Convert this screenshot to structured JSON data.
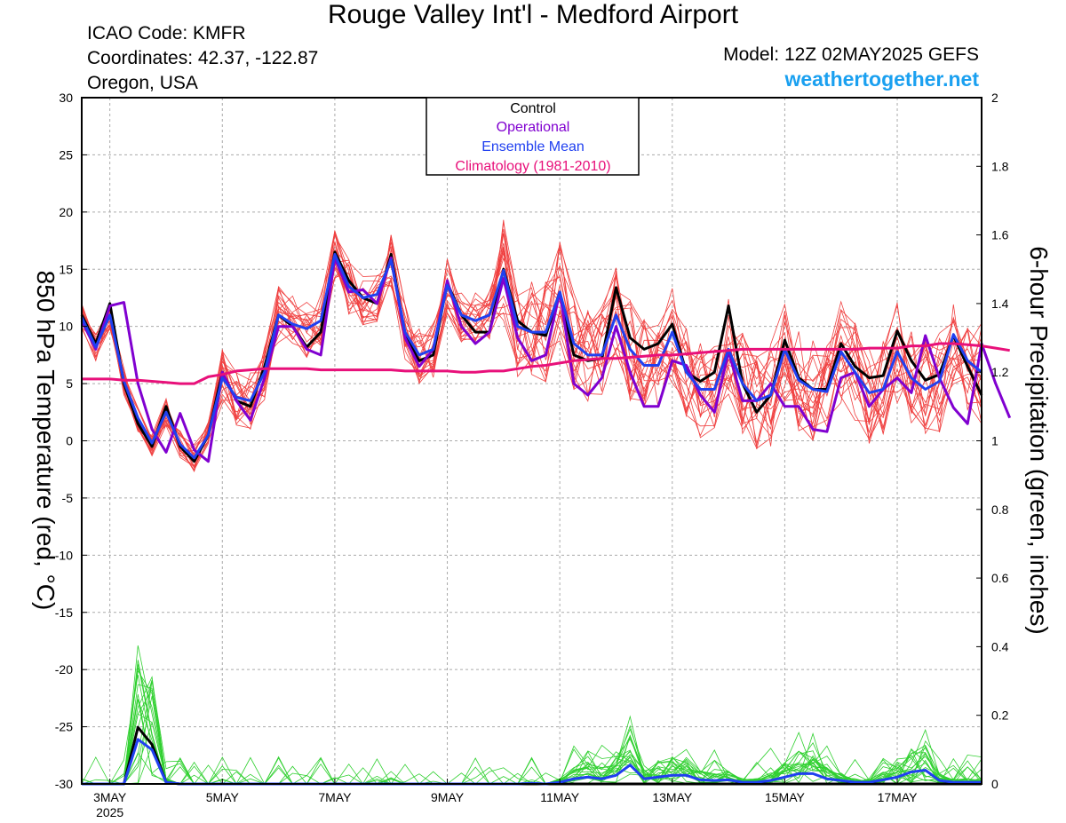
{
  "header": {
    "title": "Rouge Valley Int'l - Medford Airport",
    "icao": "ICAO Code: KMFR",
    "coords": "Coordinates: 42.37, -122.87",
    "region": "Oregon, USA",
    "model": "Model: 12Z 02MAY2025 GEFS",
    "site": "weathertogether.net"
  },
  "colors": {
    "control": "#000000",
    "operational": "#8000d0",
    "ensemble_mean": "#2040f0",
    "climatology": "#e8107a",
    "temp_members": "#f04040",
    "precip_members": "#30d030",
    "site": "#1aa0f0"
  },
  "chart_data": {
    "type": "line",
    "ylabel": "850 hPa Temperature (red, °C)",
    "y2label": "6-hour Precipitation (green, inches)",
    "ylim": [
      -30,
      30
    ],
    "y2lim": [
      0,
      2
    ],
    "yticks": [
      "30",
      "25",
      "20",
      "15",
      "10",
      "5",
      "0",
      "-5",
      "-10",
      "-15",
      "-20",
      "-25",
      "-30"
    ],
    "y2ticks": [
      "2",
      "1.8",
      "1.6",
      "1.4",
      "1.2",
      "1",
      "0.8",
      "0.6",
      "0.4",
      "0.2",
      "0"
    ],
    "xlim": [
      0,
      64
    ],
    "xticks": [
      {
        "x": 2,
        "label": "3MAY",
        "sub": "2025"
      },
      {
        "x": 10,
        "label": "5MAY",
        "sub": ""
      },
      {
        "x": 18,
        "label": "7MAY",
        "sub": ""
      },
      {
        "x": 26,
        "label": "9MAY",
        "sub": ""
      },
      {
        "x": 34,
        "label": "11MAY",
        "sub": ""
      },
      {
        "x": 42,
        "label": "13MAY",
        "sub": ""
      },
      {
        "x": 50,
        "label": "15MAY",
        "sub": ""
      },
      {
        "x": 58,
        "label": "17MAY",
        "sub": ""
      }
    ],
    "grid": true,
    "legend": {
      "position": "top-center",
      "entries": [
        "Control",
        "Operational",
        "Ensemble Mean",
        "Climatology (1981-2010)"
      ]
    },
    "series": [
      {
        "name": "Control",
        "axis": "temperature",
        "values": [
          11,
          8.5,
          12,
          5,
          1.5,
          -0.5,
          3,
          -0.5,
          -1.8,
          0.5,
          6,
          3.5,
          3,
          6.5,
          11,
          10,
          8.2,
          9.5,
          16.5,
          14,
          12.5,
          12,
          16.3,
          9.2,
          7,
          7.5,
          13.8,
          11,
          9.5,
          9.5,
          15,
          10.5,
          9.5,
          9.2,
          13,
          7.5,
          7,
          7.2,
          13.4,
          9,
          8,
          8.5,
          10.2,
          6,
          5.2,
          6,
          11.8,
          5,
          2.5,
          4,
          8.8,
          5.5,
          4.5,
          4.5,
          8.5,
          6.5,
          5.5,
          5.7,
          9.6,
          7,
          5.3,
          5.8,
          9.2,
          6.5,
          4
        ]
      },
      {
        "name": "Operational",
        "axis": "temperature",
        "values": [
          10.5,
          8,
          11.8,
          12.1,
          5,
          1,
          -1,
          2.4,
          -0.8,
          -1.8,
          6,
          3.5,
          1.8,
          5.5,
          10,
          10,
          8,
          7.5,
          16,
          13,
          13.2,
          12,
          16,
          9,
          6.5,
          8,
          14,
          10,
          8.5,
          9.5,
          14.2,
          9,
          7,
          7.5,
          13,
          5,
          4,
          5.5,
          10,
          6,
          3,
          3,
          7,
          6.6,
          4,
          2.5,
          7.8,
          3.5,
          3.5,
          5,
          3,
          3,
          1,
          0.8,
          5.5,
          6,
          3,
          4.5,
          5.5,
          4.2,
          9.2,
          5.5,
          2.9,
          1.5,
          8.5,
          5,
          2
        ]
      },
      {
        "name": "Ensemble Mean",
        "axis": "temperature",
        "values": [
          10.8,
          8.2,
          11,
          5.2,
          2,
          -0.2,
          2.5,
          -0.3,
          -1.5,
          0.5,
          5.5,
          3.8,
          3.5,
          6,
          11,
          10.2,
          9.8,
          10.5,
          16.3,
          13.5,
          12.5,
          12.8,
          15.8,
          9.5,
          7.5,
          8,
          13.6,
          11,
          10.5,
          11,
          14.9,
          10,
          9.5,
          9.5,
          13,
          8.5,
          7.5,
          7.5,
          11,
          8,
          6.6,
          6.6,
          9.5,
          6,
          4.5,
          4.5,
          8,
          5,
          3.5,
          4,
          8,
          5.3,
          4.5,
          4.3,
          7.8,
          6,
          4.2,
          4.5,
          7.8,
          5.5,
          4.5,
          5.2,
          9.3,
          7,
          6
        ]
      },
      {
        "name": "Climatology (1981-2010)",
        "axis": "temperature",
        "values": [
          5.4,
          5.4,
          5.4,
          5.3,
          5.3,
          5.2,
          5.1,
          5,
          5,
          5.6,
          5.8,
          6.1,
          6.2,
          6.3,
          6.3,
          6.3,
          6.3,
          6.2,
          6.2,
          6.2,
          6.2,
          6.2,
          6.2,
          6.1,
          6.1,
          6.1,
          6.1,
          6,
          6,
          6.1,
          6.1,
          6.3,
          6.5,
          6.6,
          6.8,
          7,
          7.1,
          7.2,
          7.2,
          7.3,
          7.4,
          7.5,
          7.5,
          7.6,
          7.7,
          7.8,
          7.9,
          8,
          8,
          8,
          8,
          8,
          8,
          8,
          8,
          8,
          8.1,
          8.1,
          8.1,
          8.3,
          8.3,
          8.5,
          8.5,
          8.4,
          8.3,
          8.1,
          7.9
        ]
      },
      {
        "name": "Control",
        "axis": "precipitation",
        "values": [
          0,
          0,
          0,
          0,
          0.165,
          0.115,
          0.005,
          0,
          0,
          0,
          0,
          0,
          0,
          0,
          0,
          0,
          0,
          0,
          0,
          0,
          0,
          0,
          0,
          0,
          0,
          0,
          0,
          0,
          0,
          0,
          0,
          0,
          0,
          0,
          0,
          0,
          0,
          0,
          0,
          0,
          0,
          0,
          0,
          0,
          0,
          0,
          0,
          0,
          0,
          0,
          0,
          0,
          0,
          0,
          0,
          0,
          0,
          0,
          0,
          0,
          0,
          0,
          0,
          0,
          0
        ]
      },
      {
        "name": "Ensemble Mean",
        "axis": "precipitation",
        "values": [
          0,
          0,
          0,
          0,
          0.13,
          0.1,
          0.005,
          0,
          0,
          0,
          0,
          0,
          0,
          0,
          0,
          0,
          0,
          0,
          0,
          0,
          0,
          0,
          0,
          0,
          0,
          0,
          0,
          0,
          0,
          0,
          0,
          0,
          0.002,
          0,
          0.005,
          0.015,
          0.02,
          0.015,
          0.025,
          0.055,
          0.015,
          0.02,
          0.025,
          0.025,
          0.012,
          0.01,
          0.012,
          0.005,
          0.005,
          0.01,
          0.02,
          0.03,
          0.03,
          0.015,
          0.01,
          0.005,
          0.005,
          0.012,
          0.02,
          0.035,
          0.04,
          0.01,
          0.005,
          0.005,
          0.005
        ]
      }
    ]
  }
}
